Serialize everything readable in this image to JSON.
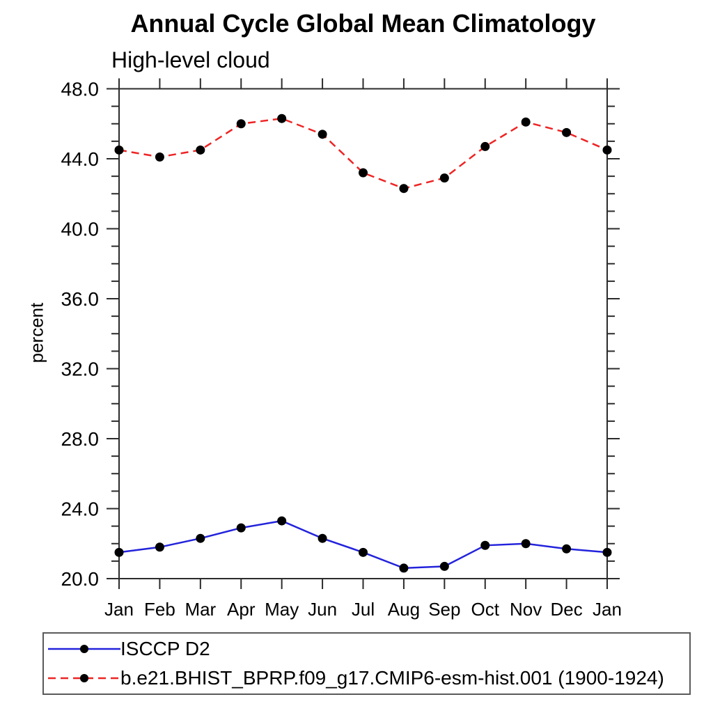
{
  "chart_data": {
    "type": "line",
    "title": "Annual Cycle Global Mean Climatology",
    "subtitle": "High-level cloud",
    "ylabel": "percent",
    "xlabel": "",
    "categories": [
      "Jan",
      "Feb",
      "Mar",
      "Apr",
      "May",
      "Jun",
      "Jul",
      "Aug",
      "Sep",
      "Oct",
      "Nov",
      "Dec",
      "Jan"
    ],
    "ylim": [
      20.0,
      48.0
    ],
    "y_major_step": 4.0,
    "y_minor_step": 1.0,
    "y_tick_labels": [
      "20.0",
      "24.0",
      "28.0",
      "32.0",
      "36.0",
      "40.0",
      "44.0",
      "48.0"
    ],
    "grid": false,
    "legend_position": "bottom-left-box",
    "axis_color": "#2b2b2b",
    "marker_shape": "filled-circle",
    "series": [
      {
        "name": "ISCCP D2",
        "color": "#2323dc",
        "line_style": "solid",
        "marker_color": "#000000",
        "values": [
          21.5,
          21.8,
          22.3,
          22.9,
          23.3,
          22.3,
          21.5,
          20.6,
          20.7,
          21.9,
          22.0,
          21.7,
          21.5
        ]
      },
      {
        "name": "b.e21.BHIST_BPRP.f09_g17.CMIP6-esm-hist.001 (1900-1924)",
        "color": "#ee2424",
        "line_style": "dashed",
        "marker_color": "#000000",
        "values": [
          44.5,
          44.1,
          44.5,
          46.0,
          46.3,
          45.4,
          43.2,
          42.3,
          42.9,
          44.7,
          46.1,
          45.5,
          44.5
        ]
      }
    ]
  }
}
